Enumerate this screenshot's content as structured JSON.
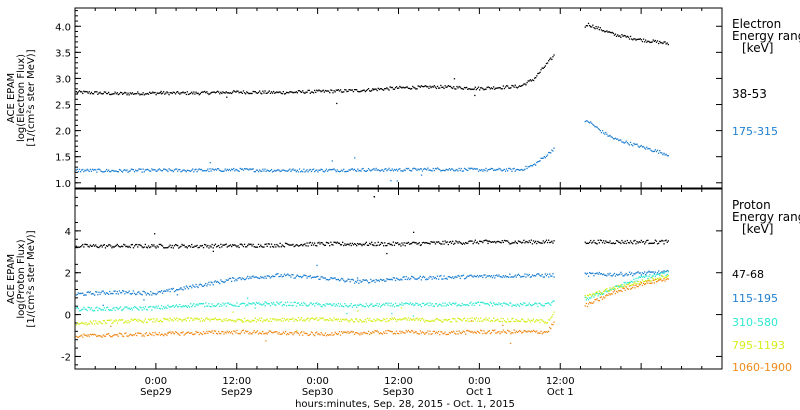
{
  "chart_data": [
    {
      "type": "scatter",
      "ylabel_lines": [
        "ACE EPAM",
        "log(Electron Flux)",
        "[1/(cm²s ster MeV)]"
      ],
      "ylim": [
        0.9,
        4.35
      ],
      "yticks": [
        "1.0",
        "1.5",
        "2.0",
        "2.5",
        "3.0",
        "3.5",
        "4.0"
      ],
      "yticks_values": [
        1.0,
        1.5,
        2.0,
        2.5,
        3.0,
        3.5,
        4.0
      ],
      "legend_title": [
        "Electron",
        "Energy ranges",
        "[keV]"
      ],
      "series": [
        {
          "name": "38-53",
          "color": "#000000",
          "x": [
            0,
            6,
            12,
            18,
            24,
            30,
            36,
            42,
            48,
            54,
            60,
            66,
            68,
            70,
            72,
            76,
            78,
            80,
            84,
            88
          ],
          "y": [
            2.75,
            2.72,
            2.73,
            2.73,
            2.75,
            2.74,
            2.76,
            2.78,
            2.83,
            2.85,
            2.82,
            2.86,
            3.0,
            3.3,
            3.6,
            4.05,
            3.95,
            3.85,
            3.75,
            3.68
          ]
        },
        {
          "name": "175-315",
          "color": "#1f7fd0",
          "x": [
            0,
            6,
            12,
            18,
            24,
            30,
            36,
            42,
            48,
            54,
            60,
            66,
            68,
            70,
            72,
            76,
            78,
            80,
            84,
            88
          ],
          "y": [
            1.25,
            1.24,
            1.25,
            1.25,
            1.26,
            1.25,
            1.25,
            1.26,
            1.26,
            1.27,
            1.26,
            1.26,
            1.35,
            1.55,
            1.8,
            2.2,
            2.0,
            1.85,
            1.7,
            1.55
          ]
        }
      ]
    },
    {
      "type": "scatter",
      "ylabel_lines": [
        "ACE EPAM",
        "log(Proton Flux)",
        "[1/(cm²s ster MeV)]"
      ],
      "ylim": [
        -2.6,
        6.0
      ],
      "yticks": [
        "-2",
        "0",
        "2",
        "4"
      ],
      "yticks_values": [
        -2,
        0,
        2,
        4
      ],
      "legend_title": [
        "Proton",
        "Energy ranges",
        "[keV]"
      ],
      "series": [
        {
          "name": "47-68",
          "color": "#000000",
          "x": [
            0,
            6,
            12,
            18,
            24,
            30,
            36,
            42,
            48,
            54,
            60,
            66,
            70,
            72,
            76,
            80,
            84,
            88
          ],
          "y": [
            3.3,
            3.3,
            3.3,
            3.3,
            3.32,
            3.35,
            3.4,
            3.4,
            3.4,
            3.45,
            3.5,
            3.5,
            3.5,
            3.5,
            3.5,
            3.5,
            3.5,
            3.5
          ]
        },
        {
          "name": "115-195",
          "color": "#1f7fd0",
          "x": [
            0,
            6,
            12,
            18,
            24,
            30,
            36,
            42,
            48,
            54,
            60,
            66,
            70,
            72,
            76,
            80,
            84,
            88
          ],
          "y": [
            1.0,
            1.1,
            1.05,
            1.4,
            1.75,
            1.9,
            1.8,
            1.6,
            1.75,
            1.8,
            1.85,
            1.9,
            1.9,
            1.9,
            1.95,
            1.95,
            2.0,
            2.05
          ]
        },
        {
          "name": "310-580",
          "color": "#2ee8d0",
          "x": [
            0,
            6,
            12,
            18,
            24,
            30,
            36,
            42,
            48,
            54,
            60,
            66,
            70,
            72,
            76,
            80,
            84,
            88
          ],
          "y": [
            0.3,
            0.3,
            0.35,
            0.5,
            0.5,
            0.55,
            0.5,
            0.45,
            0.5,
            0.5,
            0.55,
            0.5,
            0.5,
            0.7,
            0.8,
            1.3,
            1.8,
            2.0
          ]
        },
        {
          "name": "795-1193",
          "color": "#d4ee1a",
          "x": [
            0,
            6,
            12,
            18,
            24,
            30,
            36,
            42,
            48,
            54,
            60,
            66,
            70,
            72,
            76,
            80,
            84,
            88
          ],
          "y": [
            -0.4,
            -0.3,
            -0.25,
            -0.2,
            -0.25,
            -0.2,
            -0.2,
            -0.25,
            -0.2,
            -0.25,
            -0.2,
            -0.25,
            -0.3,
            0.5,
            0.9,
            1.3,
            1.6,
            1.9
          ]
        },
        {
          "name": "1060-1900",
          "color": "#f08a1a",
          "x": [
            0,
            6,
            12,
            18,
            24,
            30,
            36,
            42,
            48,
            54,
            60,
            66,
            70,
            72,
            76,
            80,
            84,
            88
          ],
          "y": [
            -1.0,
            -0.95,
            -0.9,
            -0.85,
            -0.8,
            -0.85,
            -0.9,
            -0.85,
            -0.8,
            -0.85,
            -0.8,
            -0.8,
            -0.8,
            0.1,
            0.5,
            1.1,
            1.5,
            1.75
          ]
        }
      ]
    }
  ],
  "x_axis": {
    "xlim": [
      0,
      96
    ],
    "ticks": [
      {
        "x": 12,
        "top": "0:00",
        "bottom": "Sep29"
      },
      {
        "x": 24,
        "top": "12:00",
        "bottom": "Sep29"
      },
      {
        "x": 36,
        "top": "0:00",
        "bottom": "Sep30"
      },
      {
        "x": 48,
        "top": "12:00",
        "bottom": "Sep30"
      },
      {
        "x": 60,
        "top": "0:00",
        "bottom": "Oct 1"
      },
      {
        "x": 72,
        "top": "12:00",
        "bottom": "Oct 1"
      }
    ],
    "xlabel": "hours:minutes, Sep. 28, 2015 - Oct. 1, 2015"
  }
}
